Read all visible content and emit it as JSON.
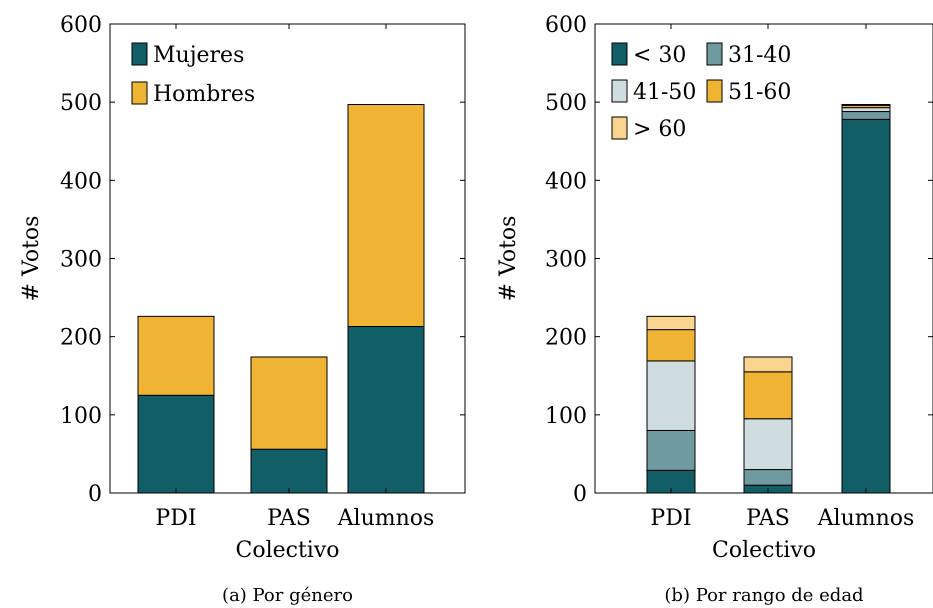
{
  "chart_data": [
    {
      "type": "bar",
      "stacked": true,
      "categories": [
        "PDI",
        "PAS",
        "Alumnos"
      ],
      "series": [
        {
          "name": "Mujeres",
          "values": [
            125,
            56,
            213
          ],
          "color": "#125e66"
        },
        {
          "name": "Hombres",
          "values": [
            101,
            118,
            284
          ],
          "color": "#f0b434"
        }
      ],
      "xlabel": "Colectivo",
      "ylabel": "# Votos",
      "ylim": [
        0,
        600
      ],
      "yticks": [
        0,
        100,
        200,
        300,
        400,
        500,
        600
      ],
      "legend_position": "top-left",
      "caption": "(a) Por género"
    },
    {
      "type": "bar",
      "stacked": true,
      "categories": [
        "PDI",
        "PAS",
        "Alumnos"
      ],
      "series": [
        {
          "name": "< 30",
          "values": [
            29,
            10,
            478
          ],
          "color": "#125e66"
        },
        {
          "name": "31-40",
          "values": [
            51,
            20,
            10
          ],
          "color": "#6f9aa0"
        },
        {
          "name": "41-50",
          "values": [
            89,
            65,
            5
          ],
          "color": "#cfdde1"
        },
        {
          "name": "51-60",
          "values": [
            40,
            60,
            3
          ],
          "color": "#f0b434"
        },
        {
          "name": "> 60",
          "values": [
            17,
            19,
            1
          ],
          "color": "#f8d48e"
        }
      ],
      "xlabel": "Colectivo",
      "ylabel": "# Votos",
      "ylim": [
        0,
        600
      ],
      "yticks": [
        0,
        100,
        200,
        300,
        400,
        500,
        600
      ],
      "legend_position": "top-left",
      "caption": "(b) Por rango de edad"
    }
  ]
}
